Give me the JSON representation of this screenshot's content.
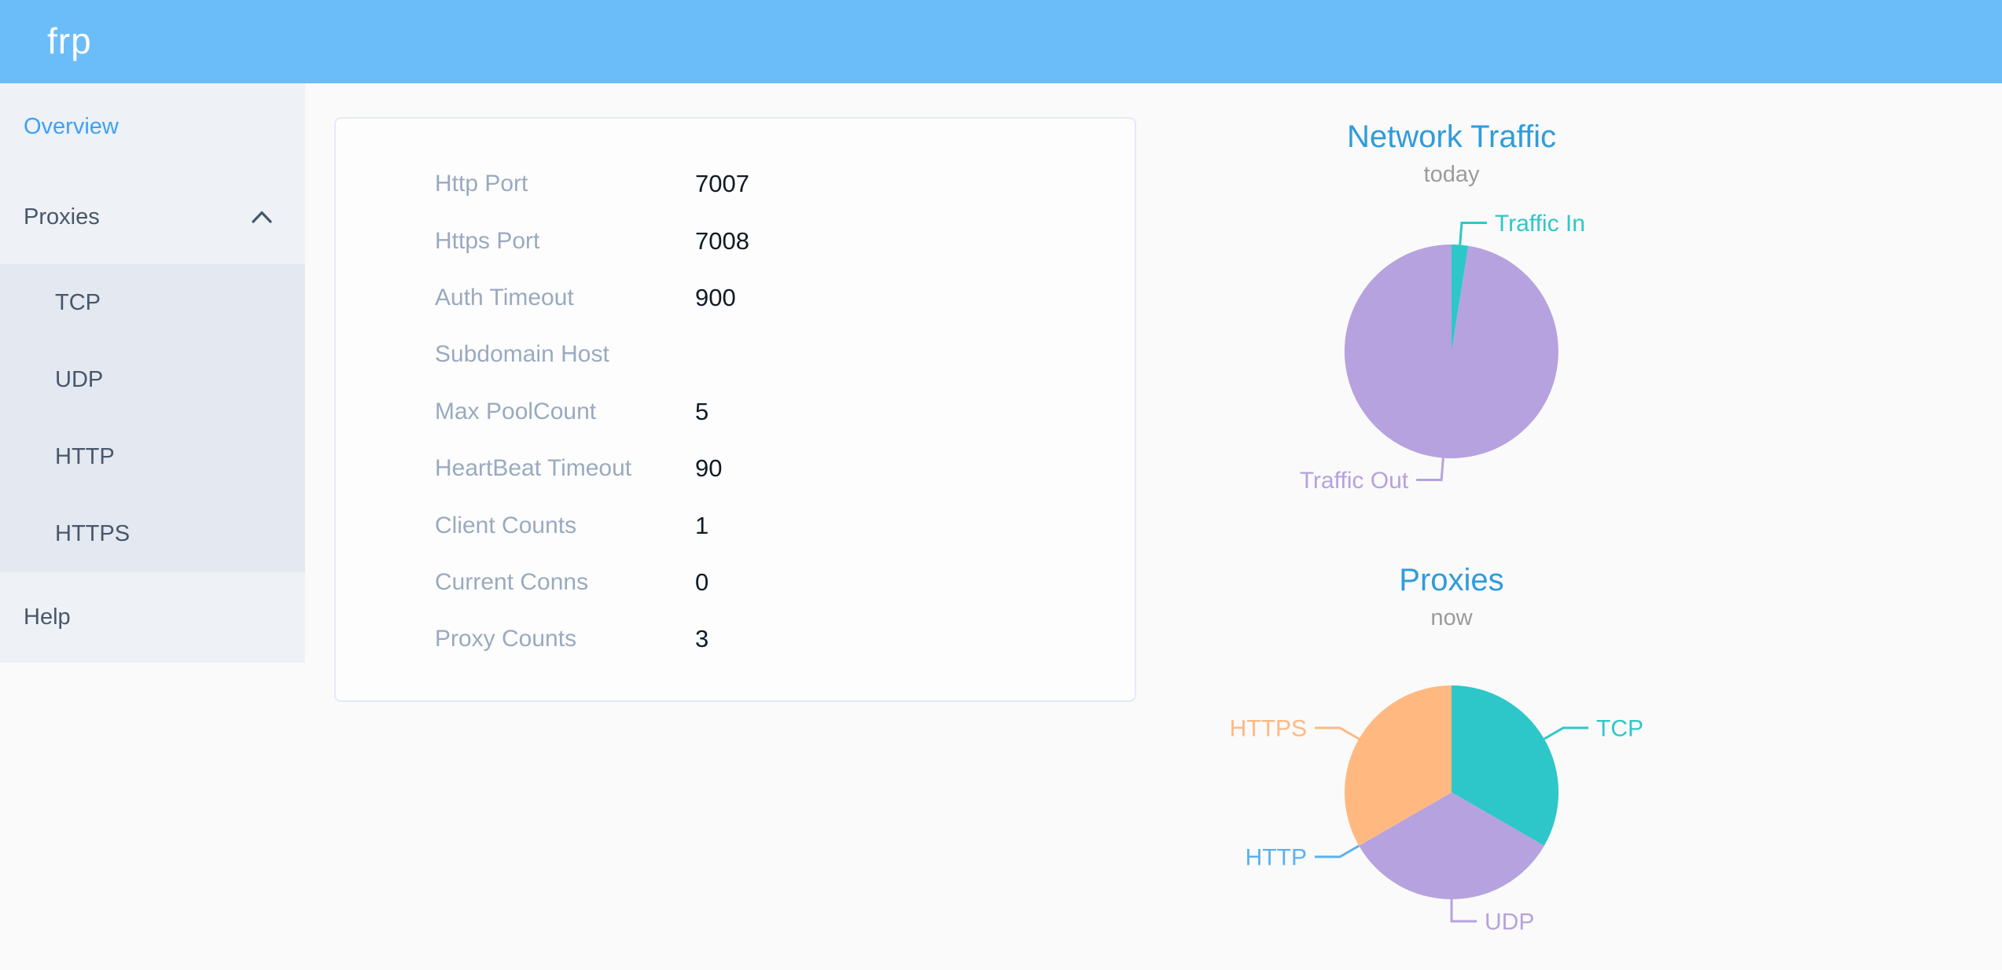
{
  "header": {
    "logo": "frp"
  },
  "sidebar": {
    "items": [
      {
        "label": "Overview",
        "state": "active"
      },
      {
        "label": "Proxies",
        "state": "expanded"
      },
      {
        "label": "TCP"
      },
      {
        "label": "UDP"
      },
      {
        "label": "HTTP"
      },
      {
        "label": "HTTPS"
      },
      {
        "label": "Help"
      }
    ],
    "icons": {
      "proxies_toggle": "chevron-up"
    }
  },
  "server_info": {
    "rows": [
      {
        "label": "Http Port",
        "value": "7007"
      },
      {
        "label": "Https Port",
        "value": "7008"
      },
      {
        "label": "Auth Timeout",
        "value": "900"
      },
      {
        "label": "Subdomain Host",
        "value": ""
      },
      {
        "label": "Max PoolCount",
        "value": "5"
      },
      {
        "label": "HeartBeat Timeout",
        "value": "90"
      },
      {
        "label": "Client Counts",
        "value": "1"
      },
      {
        "label": "Current Conns",
        "value": "0"
      },
      {
        "label": "Proxy Counts",
        "value": "3"
      }
    ]
  },
  "chart_data": [
    {
      "type": "pie",
      "title": "Network Traffic",
      "subtitle": "today",
      "legend_position": "none",
      "labels": "outside-with-leader-lines",
      "value_unit": "share of total traffic, estimated from slice angles (%)",
      "series": [
        {
          "name": "Traffic In",
          "value": 2.5,
          "color": "#2ec7c9"
        },
        {
          "name": "Traffic Out",
          "value": 97.5,
          "color": "#b6a2de"
        }
      ]
    },
    {
      "type": "pie",
      "title": "Proxies",
      "subtitle": "now",
      "legend_position": "none",
      "labels": "outside-with-leader-lines",
      "value_unit": "proxy count (total 3; HTTP slice is zero-width)",
      "series": [
        {
          "name": "TCP",
          "value": 1,
          "color": "#2ec7c9"
        },
        {
          "name": "UDP",
          "value": 1,
          "color": "#b6a2de"
        },
        {
          "name": "HTTP",
          "value": 0,
          "color": "#5ab1ef"
        },
        {
          "name": "HTTPS",
          "value": 1,
          "color": "#ffb980"
        }
      ]
    }
  ],
  "colors": {
    "header_bg": "#6bbdf9",
    "sidebar_bg": "#eef1f6",
    "submenu_bg": "#e4e8f1",
    "menu_text": "#48576a",
    "menu_active": "#3ca1f8",
    "page_bg": "#fafafa",
    "card_border": "#e5e9f4",
    "info_label": "#9aaabf",
    "chart_title": "#2f9cdb",
    "chart_subtitle": "#9b9b9b"
  }
}
